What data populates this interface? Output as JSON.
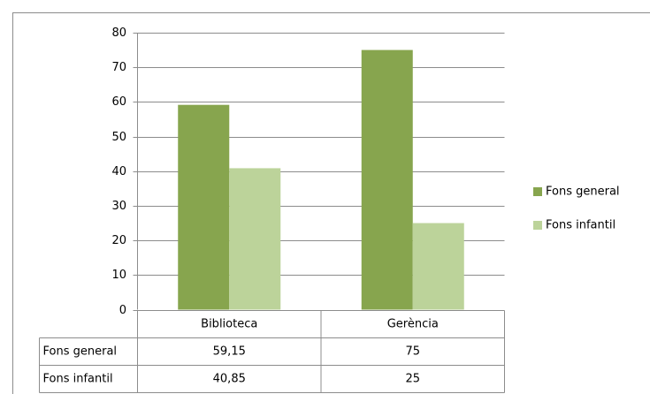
{
  "chart_data": {
    "type": "bar",
    "categories": [
      "Biblioteca",
      "Gerència"
    ],
    "series": [
      {
        "name": "Fons general",
        "color": "#87a54e",
        "values": [
          59.15,
          75
        ],
        "value_labels": [
          "59,15",
          "75"
        ]
      },
      {
        "name": "Fons infantil",
        "color": "#bcd39a",
        "values": [
          40.85,
          25
        ],
        "value_labels": [
          "40,85",
          "25"
        ]
      }
    ],
    "ylim": [
      0,
      80
    ],
    "yticks": [
      0,
      10,
      20,
      30,
      40,
      50,
      60,
      70,
      80
    ],
    "grid": true,
    "legend": "right",
    "data_table": true
  }
}
